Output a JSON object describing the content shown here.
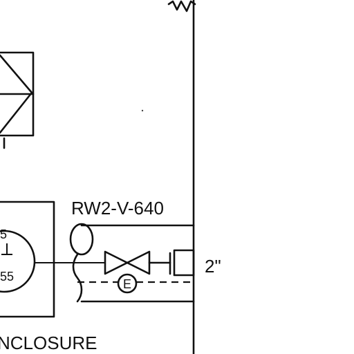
{
  "valve": {
    "tag": "RW2-V-640",
    "line_size": "2\"",
    "electric_symbol": "E"
  },
  "instrument": {
    "top_fragment": "5",
    "bottom_fragment": "55"
  },
  "enclosure": {
    "label": "NCLOSURE"
  }
}
